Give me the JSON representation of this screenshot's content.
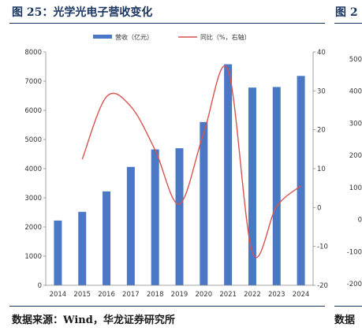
{
  "header": {
    "title": "图 25：光学光电子营收变化",
    "title_next": "图 2"
  },
  "footer": {
    "source": "数据来源：Wind，华龙证券研究所",
    "source_next": "数据"
  },
  "chart_data": {
    "type": "bar",
    "categories": [
      "2014",
      "2015",
      "2016",
      "2017",
      "2018",
      "2019",
      "2020",
      "2021",
      "2022",
      "2023",
      "2024"
    ],
    "series": [
      {
        "name": "营收（亿元）",
        "type": "bar",
        "axis": "left",
        "color": "#4a78c4",
        "values": [
          2220,
          2520,
          3220,
          4060,
          4660,
          4700,
          5600,
          7580,
          6780,
          6800,
          7180
        ]
      },
      {
        "name": "同比（%，右轴）",
        "type": "line",
        "axis": "right",
        "color": "#d9534f",
        "values": [
          null,
          12.4,
          28.5,
          26.0,
          14.8,
          0.9,
          19.2,
          35.4,
          -11.5,
          0.3,
          5.6
        ]
      }
    ],
    "y_left": {
      "ylim": [
        0,
        8000
      ],
      "ticks": [
        0,
        1000,
        2000,
        3000,
        4000,
        5000,
        6000,
        7000,
        8000
      ]
    },
    "y_right": {
      "ylim": [
        -20,
        40
      ],
      "ticks": [
        -20,
        -10,
        0,
        10,
        20,
        30,
        40
      ]
    },
    "next_axis_ticks": [
      "500",
      "400",
      "300",
      "200",
      "100",
      "0",
      "-100",
      "-200"
    ],
    "legend_position": "top-center",
    "grid": false
  }
}
